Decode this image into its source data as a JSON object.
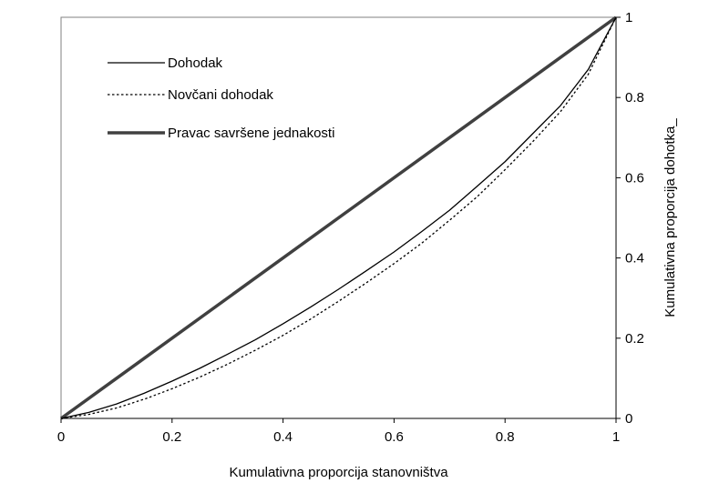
{
  "chart_data": {
    "type": "line",
    "title": "",
    "xlabel": "Kumulativna proporcija stanovništva",
    "ylabel": "Kumulativna proporcija dohotka_",
    "xlim": [
      0,
      1
    ],
    "ylim": [
      0,
      1
    ],
    "x_ticks": [
      "0",
      "0.2",
      "0.4",
      "0.6",
      "0.8",
      "1"
    ],
    "y_ticks": [
      "0",
      "0.2",
      "0.4",
      "0.6",
      "0.8",
      "1"
    ],
    "grid": false,
    "legend_position": "top-left",
    "series": [
      {
        "name": "Dohodak",
        "style": "solid-thin",
        "color": "#000000",
        "x": [
          0,
          0.05,
          0.1,
          0.15,
          0.2,
          0.25,
          0.3,
          0.35,
          0.4,
          0.45,
          0.5,
          0.55,
          0.6,
          0.65,
          0.7,
          0.75,
          0.8,
          0.85,
          0.9,
          0.95,
          1
        ],
        "y": [
          0,
          0.015,
          0.036,
          0.063,
          0.093,
          0.125,
          0.16,
          0.196,
          0.236,
          0.278,
          0.322,
          0.368,
          0.415,
          0.466,
          0.519,
          0.579,
          0.64,
          0.71,
          0.78,
          0.87,
          1
        ]
      },
      {
        "name": "Novčani dohodak",
        "style": "dotted",
        "color": "#000000",
        "x": [
          0,
          0.05,
          0.1,
          0.15,
          0.2,
          0.25,
          0.3,
          0.35,
          0.4,
          0.45,
          0.5,
          0.55,
          0.6,
          0.65,
          0.7,
          0.75,
          0.8,
          0.85,
          0.9,
          0.95,
          1
        ],
        "y": [
          0,
          0.01,
          0.026,
          0.048,
          0.074,
          0.103,
          0.135,
          0.17,
          0.207,
          0.248,
          0.292,
          0.338,
          0.386,
          0.437,
          0.494,
          0.553,
          0.62,
          0.69,
          0.765,
          0.858,
          1
        ]
      },
      {
        "name": "Pravac savršene jednakosti",
        "style": "solid-thick",
        "color": "#404040",
        "x": [
          0,
          1
        ],
        "y": [
          0,
          1
        ]
      }
    ]
  }
}
